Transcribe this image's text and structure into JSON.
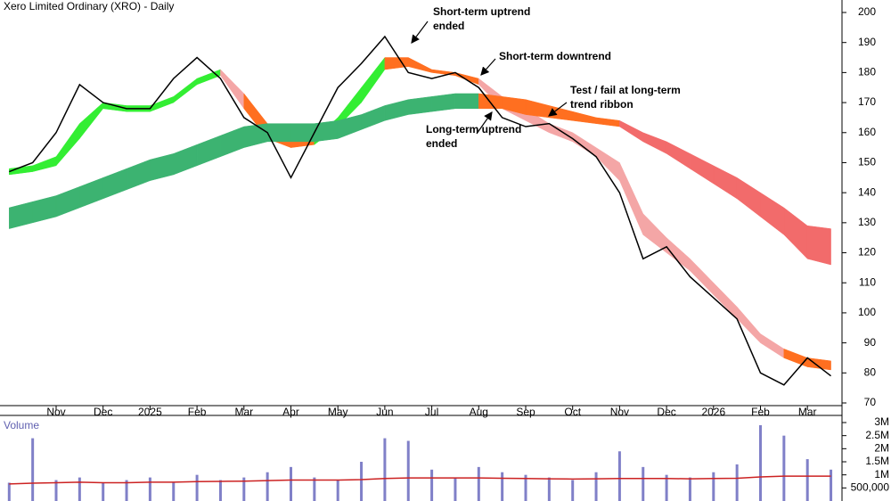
{
  "chart_data": [
    {
      "type": "line",
      "title": "Xero Limited Ordinary (XRO) - Daily",
      "categories": [
        null,
        null,
        "Nov",
        null,
        "Dec",
        null,
        "2025",
        null,
        "Feb",
        null,
        "Mar",
        null,
        "Apr",
        null,
        "May",
        null,
        "Jun",
        null,
        "Jul",
        null,
        "Aug",
        null,
        "Sep",
        null,
        "Oct",
        null,
        "Nov",
        null,
        "Dec",
        null,
        "2026",
        null,
        "Feb",
        null,
        "Mar",
        null
      ],
      "series": [
        {
          "color": "#000000",
          "values": [
            147,
            150,
            160,
            176,
            170,
            168,
            168,
            178,
            185,
            178,
            165,
            160,
            145,
            160,
            175,
            183,
            192,
            180,
            178,
            180,
            175,
            165,
            162,
            163,
            158,
            152,
            140,
            118,
            122,
            112,
            105,
            98,
            80,
            76,
            85,
            79
          ]
        }
      ],
      "bands": [
        {
          "upper": [
            148,
            149,
            152,
            163,
            170,
            169,
            169,
            172,
            178,
            181,
            173,
            163,
            160,
            158,
            165,
            175,
            185,
            185,
            181,
            180,
            178,
            172,
            168,
            163,
            160,
            155,
            150,
            133,
            125,
            118,
            110,
            102,
            93,
            88,
            85,
            84
          ],
          "lower": [
            146,
            147,
            149,
            158,
            168,
            167,
            167,
            170,
            176,
            179,
            168,
            158,
            155,
            156,
            162,
            170,
            181,
            182,
            180,
            179,
            176,
            168,
            164,
            160,
            157,
            152,
            144,
            126,
            120,
            114,
            106,
            98,
            90,
            85,
            82,
            81
          ],
          "colors": [
            "#33ee33",
            "#33ee33",
            "#33ee33",
            "#33ee33",
            "#33ee33",
            "#33ee33",
            "#33ee33",
            "#33ee33",
            "#33ee33",
            "#f4a6a6",
            "#ff6f20",
            "#ff6f20",
            "#ff6f20",
            "#33ee33",
            "#33ee33",
            "#33ee33",
            "#ff6f20",
            "#ff6f20",
            "#ff6f20",
            "#ff6f20",
            "#f4a6a6",
            "#f4a6a6",
            "#f4a6a6",
            "#f4a6a6",
            "#f4a6a6",
            "#f4a6a6",
            "#f4a6a6",
            "#f4a6a6",
            "#f4a6a6",
            "#f4a6a6",
            "#f4a6a6",
            "#f4a6a6",
            "#f4a6a6",
            "#ff6f20",
            "#ff6f20",
            "#ff6f20"
          ]
        },
        {
          "upper": [
            135,
            137,
            139,
            142,
            145,
            148,
            151,
            153,
            156,
            159,
            162,
            163,
            163,
            163,
            164,
            166,
            169,
            171,
            172,
            173,
            173,
            172,
            171,
            169,
            167,
            165,
            164,
            160,
            157,
            153,
            149,
            145,
            140,
            135,
            129,
            128
          ],
          "lower": [
            128,
            130,
            132,
            135,
            138,
            141,
            144,
            146,
            149,
            152,
            155,
            157,
            157,
            157,
            158,
            161,
            164,
            166,
            167,
            168,
            168,
            168,
            166,
            165,
            164,
            163,
            162,
            157,
            153,
            148,
            143,
            138,
            132,
            126,
            118,
            116
          ],
          "colors": [
            "#3cb371",
            "#3cb371",
            "#3cb371",
            "#3cb371",
            "#3cb371",
            "#3cb371",
            "#3cb371",
            "#3cb371",
            "#3cb371",
            "#3cb371",
            "#3cb371",
            "#3cb371",
            "#3cb371",
            "#3cb371",
            "#3cb371",
            "#3cb371",
            "#3cb371",
            "#3cb371",
            "#3cb371",
            "#3cb371",
            "#ff6f20",
            "#ff6f20",
            "#ff6f20",
            "#ff6f20",
            "#ff6f20",
            "#ff6f20",
            "#f26b6b",
            "#f26b6b",
            "#f26b6b",
            "#f26b6b",
            "#f26b6b",
            "#f26b6b",
            "#f26b6b",
            "#f26b6b",
            "#f26b6b",
            "#f26b6b"
          ]
        }
      ],
      "annotations": [
        {
          "lines": [
            "Short-term uptrend",
            "ended"
          ],
          "at": 17
        },
        {
          "lines": [
            "Short-term downtrend"
          ],
          "at": 20
        },
        {
          "lines": [
            "Test / fail at long-term",
            "trend ribbon"
          ],
          "at": 23
        },
        {
          "lines": [
            "Long-term uptrend",
            "ended"
          ],
          "at": 21
        }
      ],
      "ylim": [
        70,
        200
      ],
      "yticks": [
        70,
        80,
        90,
        100,
        110,
        120,
        130,
        140,
        150,
        160,
        170,
        180,
        190,
        200
      ]
    },
    {
      "type": "bar",
      "title": "Volume",
      "series": [
        {
          "color": "#8080c8",
          "values": [
            700000,
            2400000,
            800000,
            900000,
            700000,
            800000,
            900000,
            700000,
            1000000,
            800000,
            900000,
            1100000,
            1300000,
            900000,
            800000,
            1500000,
            2400000,
            2300000,
            1200000,
            900000,
            1300000,
            1100000,
            1000000,
            900000,
            800000,
            1100000,
            1900000,
            1300000,
            1000000,
            900000,
            1100000,
            1400000,
            2900000,
            2500000,
            1600000,
            1200000
          ]
        },
        {
          "color": "#cc2222",
          "values": [
            650000,
            680000,
            700000,
            720000,
            700000,
            700000,
            720000,
            720000,
            740000,
            750000,
            760000,
            780000,
            800000,
            800000,
            800000,
            820000,
            860000,
            880000,
            880000,
            880000,
            880000,
            870000,
            860000,
            850000,
            840000,
            850000,
            860000,
            860000,
            860000,
            850000,
            860000,
            870000,
            920000,
            950000,
            950000,
            950000
          ]
        }
      ],
      "ylim": [
        0,
        3000000
      ],
      "yticks": [
        {
          "value": 500000,
          "label": "500,000"
        },
        {
          "value": 1000000,
          "label": "1M"
        },
        {
          "value": 1500000,
          "label": "1.5M"
        },
        {
          "value": 2000000,
          "label": "2M"
        },
        {
          "value": 2500000,
          "label": "2.5M"
        },
        {
          "value": 3000000,
          "label": "3M"
        }
      ]
    }
  ]
}
